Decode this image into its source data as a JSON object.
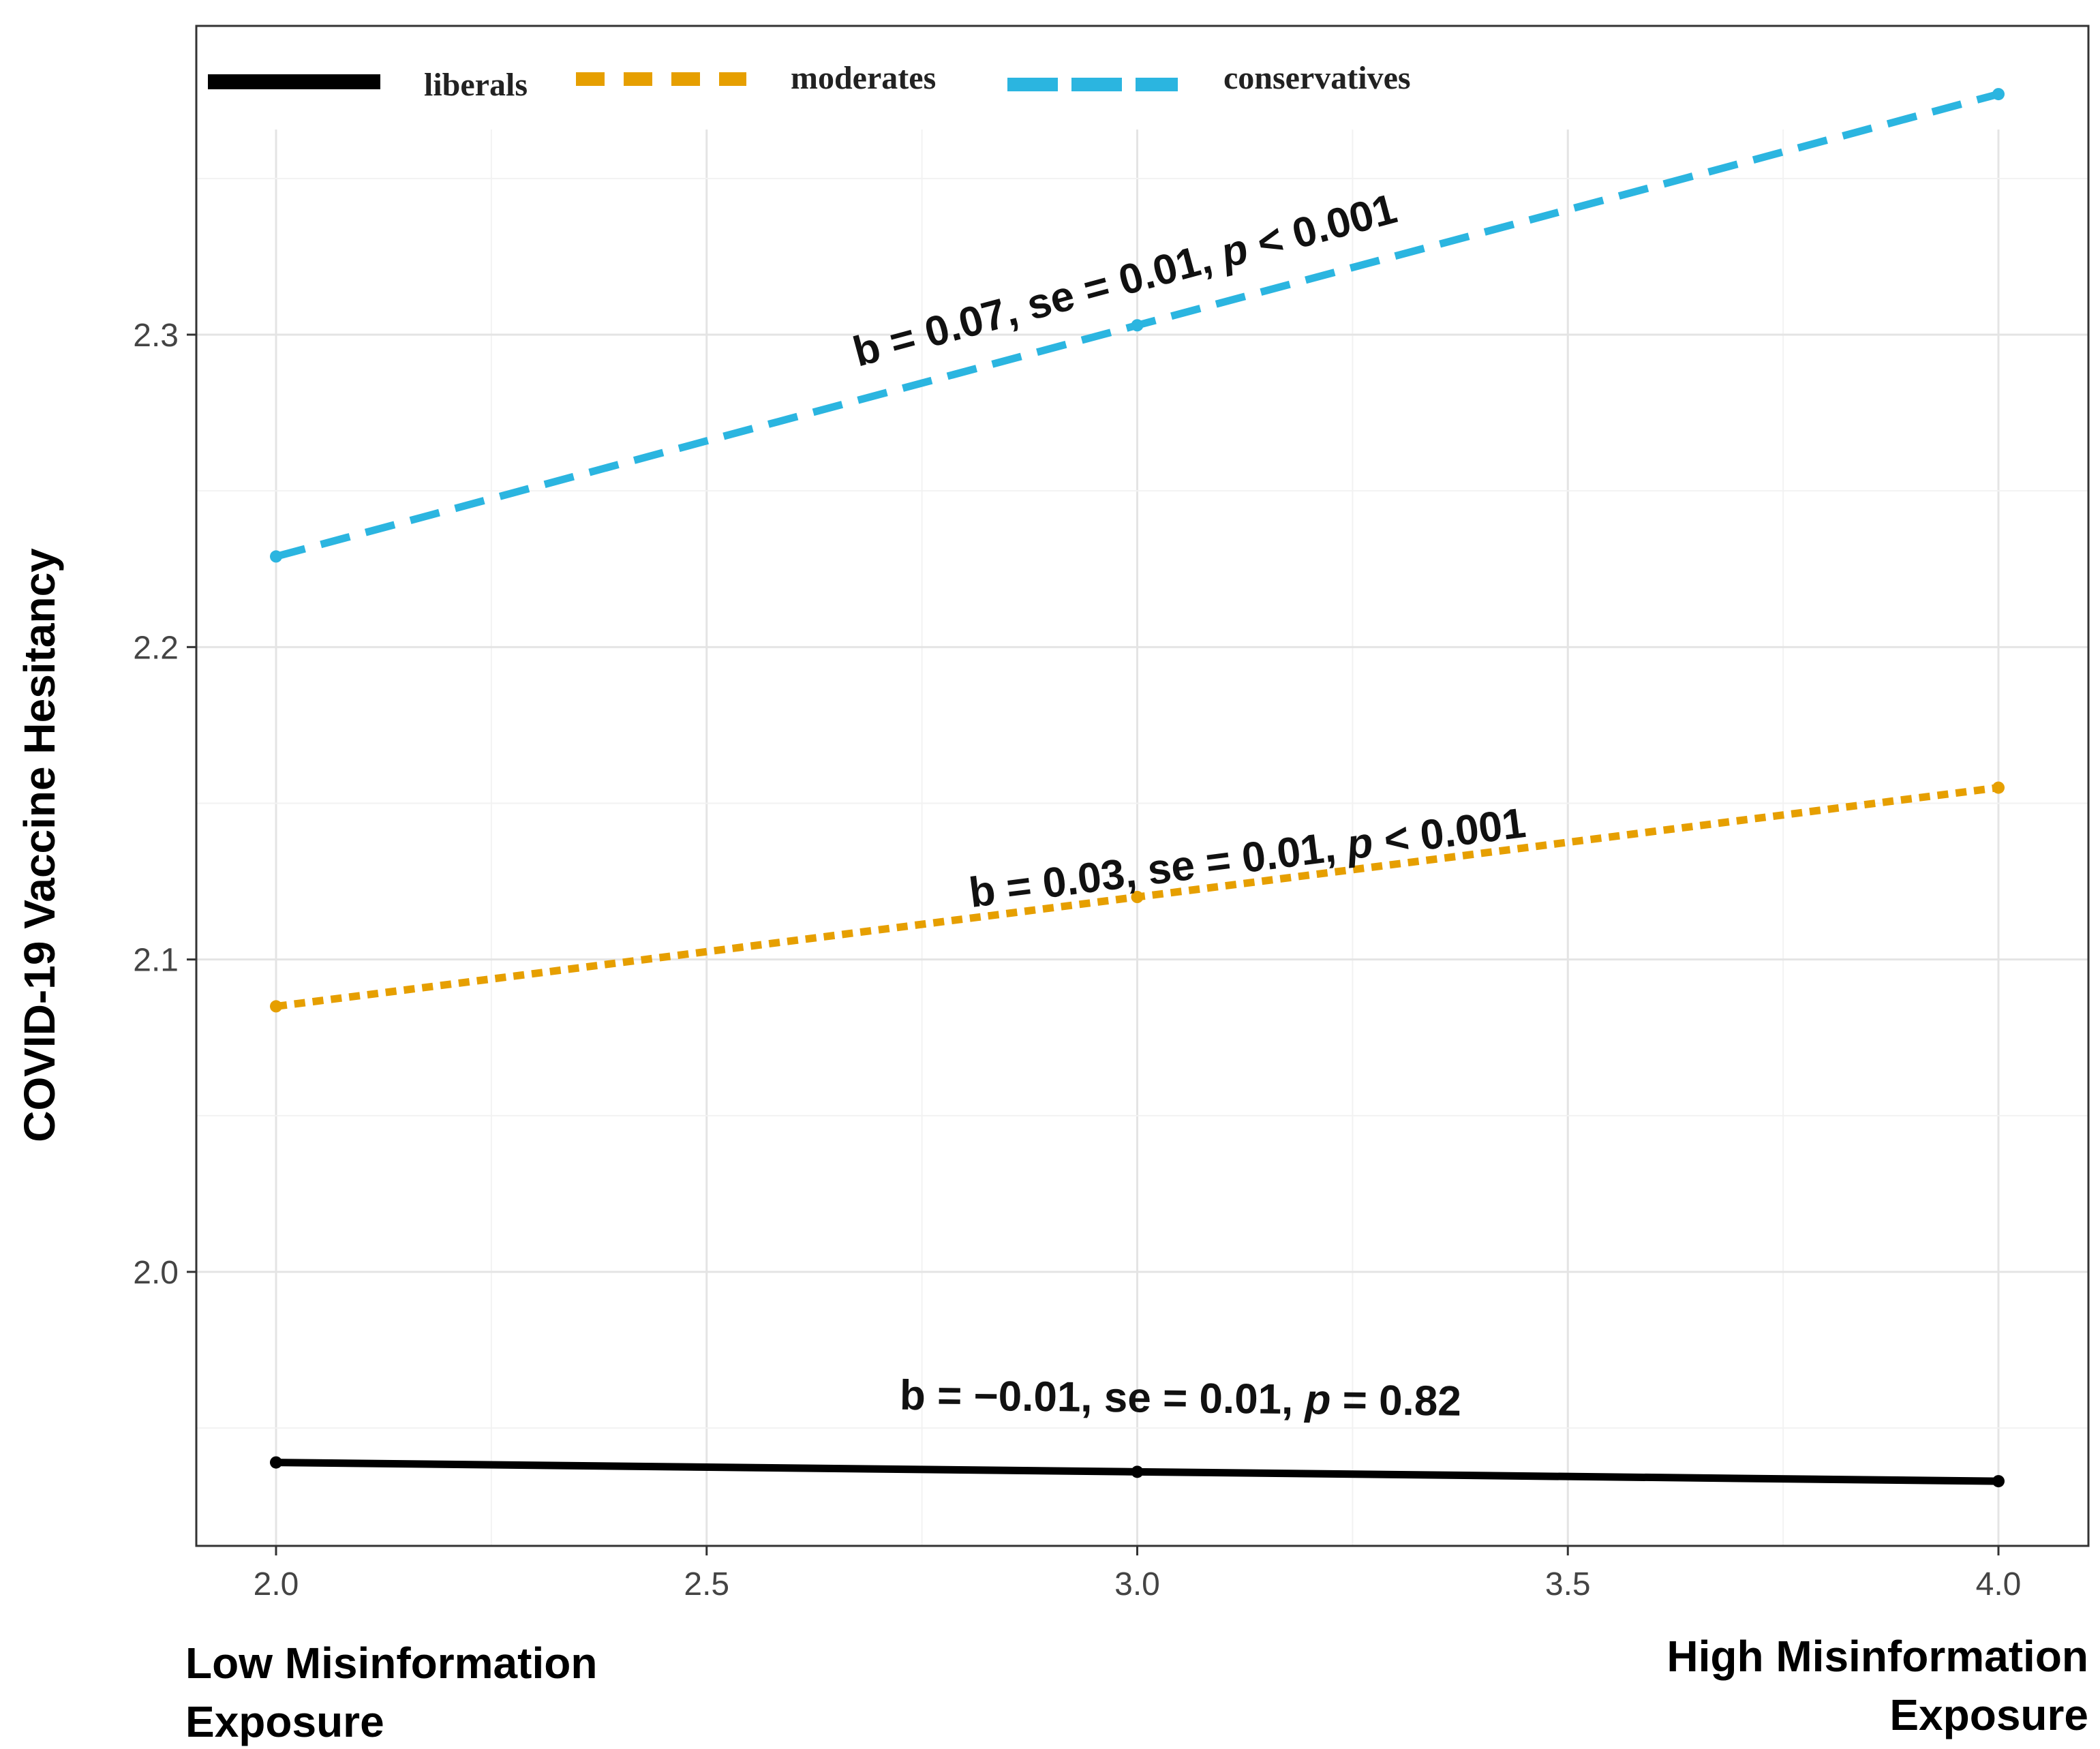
{
  "chart_data": {
    "type": "line",
    "title": "",
    "xlabel": "",
    "ylabel": "COVID-19 Vaccine Hesitancy",
    "x_caption_left": [
      "Low Misinformation",
      "Exposure"
    ],
    "x_caption_right": [
      "High Misinformation",
      "Exposure"
    ],
    "xlim": [
      1.9,
      4.1
    ],
    "ylim": [
      1.915,
      2.39
    ],
    "x_ticks": [
      2.0,
      2.5,
      3.0,
      3.5,
      4.0
    ],
    "x_tick_labels": [
      "2.0",
      "2.5",
      "3.0",
      "3.5",
      "4.0"
    ],
    "y_ticks": [
      2.0,
      2.1,
      2.2,
      2.3
    ],
    "y_tick_labels": [
      "2.0",
      "2.1",
      "2.2",
      "2.3"
    ],
    "grid": true,
    "legend_position": "top-left",
    "series": [
      {
        "name": "liberals",
        "color": "#000000",
        "dash": "solid",
        "x": [
          2.0,
          3.0,
          4.0
        ],
        "y": [
          1.939,
          1.936,
          1.933
        ],
        "annotation": {
          "prefix": "b = −0.01, se = 0.01, ",
          "p": "p",
          "suffix": " = 0.82",
          "at_x": 3.05,
          "at_y": 1.955
        }
      },
      {
        "name": "moderates",
        "color": "#E69F00",
        "dash": "dotted",
        "x": [
          2.0,
          3.0,
          4.0
        ],
        "y": [
          2.085,
          2.12,
          2.155
        ],
        "annotation": {
          "prefix": "b = 0.03, se = 0.01, ",
          "p": "p",
          "suffix": " < 0.001",
          "at_x": 3.13,
          "at_y": 2.128
        }
      },
      {
        "name": "conservatives",
        "color": "#2BB5E0",
        "dash": "dashed",
        "x": [
          2.0,
          3.0,
          4.0
        ],
        "y": [
          2.229,
          2.303,
          2.377
        ],
        "annotation": {
          "prefix": "b = 0.07, se = 0.01, ",
          "p": "p",
          "suffix": " < 0.001",
          "at_x": 2.99,
          "at_y": 2.313
        }
      }
    ]
  }
}
